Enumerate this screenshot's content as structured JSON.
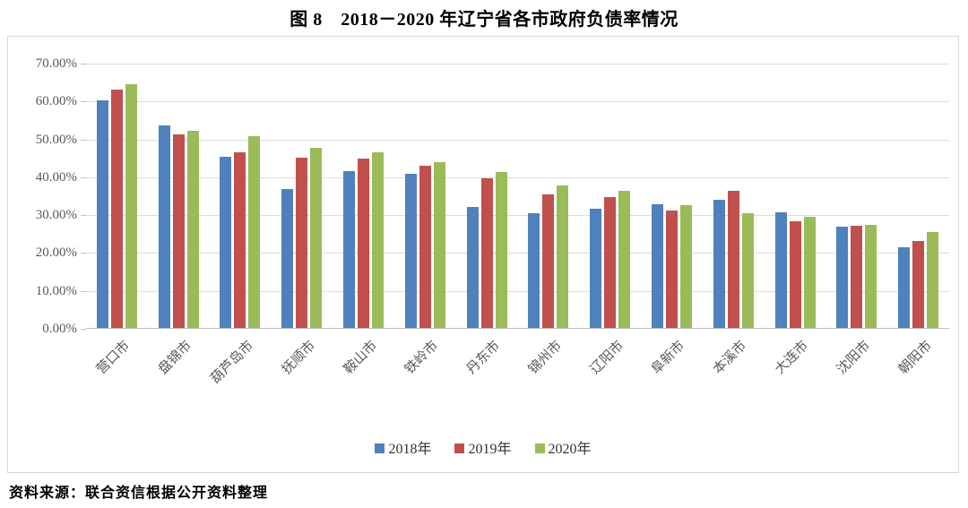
{
  "title": "图 8　2018－2020 年辽宁省各市政府负债率情况",
  "source": "资料来源：联合资信根据公开资料整理",
  "colors": {
    "series_2018": "#4F81BD",
    "series_2019": "#C0504D",
    "series_2020": "#9BBB59",
    "gridline": "#dcdcdc",
    "axis_text": "#595959"
  },
  "chart_data": {
    "type": "bar",
    "title": "图 8　2018－2020 年辽宁省各市政府负债率情况",
    "xlabel": "",
    "ylabel": "",
    "ylim": [
      0,
      70
    ],
    "y_tick_step": 10,
    "y_ticks": [
      "0.00%",
      "10.00%",
      "20.00%",
      "30.00%",
      "40.00%",
      "50.00%",
      "60.00%",
      "70.00%"
    ],
    "grid": true,
    "legend_position": "bottom",
    "categories": [
      "营口市",
      "盘锦市",
      "葫芦岛市",
      "抚顺市",
      "鞍山市",
      "铁岭市",
      "丹东市",
      "锦州市",
      "辽阳市",
      "阜新市",
      "本溪市",
      "大连市",
      "沈阳市",
      "朝阳市"
    ],
    "series": [
      {
        "name": "2018年",
        "color": "#4F81BD",
        "values": [
          60.0,
          53.4,
          45.2,
          36.6,
          41.4,
          40.6,
          32.0,
          30.3,
          31.4,
          32.6,
          33.9,
          30.5,
          26.8,
          21.2
        ]
      },
      {
        "name": "2019年",
        "color": "#C0504D",
        "values": [
          62.9,
          51.2,
          46.3,
          44.9,
          44.8,
          42.8,
          39.5,
          35.2,
          34.5,
          30.9,
          36.2,
          28.1,
          26.9,
          23.0
        ]
      },
      {
        "name": "2020年",
        "color": "#9BBB59",
        "values": [
          64.3,
          52.1,
          50.7,
          47.6,
          46.3,
          43.7,
          41.1,
          37.5,
          36.3,
          32.3,
          30.2,
          29.3,
          27.1,
          25.3
        ]
      }
    ]
  }
}
